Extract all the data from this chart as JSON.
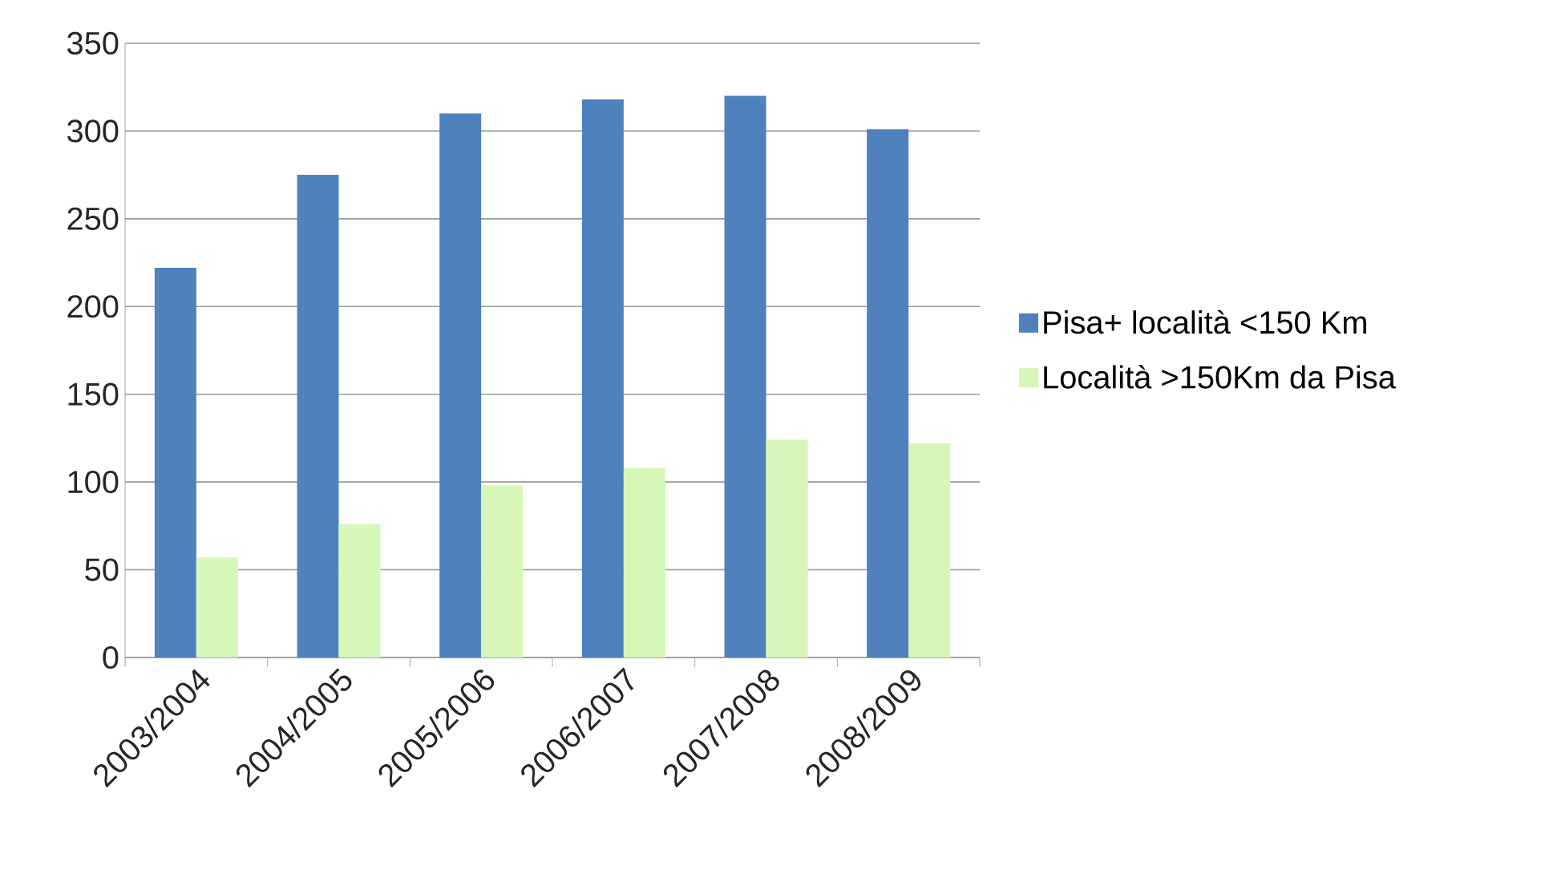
{
  "chart_data": {
    "type": "bar",
    "categories": [
      "2003/2004",
      "2004/2005",
      "2005/2006",
      "2006/2007",
      "2007/2008",
      "2008/2009"
    ],
    "series": [
      {
        "name": "Pisa+ località <150 Km",
        "color": "#4f81bd",
        "values": [
          222,
          275,
          310,
          318,
          320,
          301
        ]
      },
      {
        "name": "Località >150Km da Pisa",
        "color": "#d7f7b8",
        "values": [
          57,
          76,
          98,
          108,
          124,
          122
        ]
      }
    ],
    "ylim": [
      0,
      350
    ],
    "yticks": [
      0,
      50,
      100,
      150,
      200,
      250,
      300,
      350
    ],
    "grid": "y",
    "legend": "right"
  }
}
